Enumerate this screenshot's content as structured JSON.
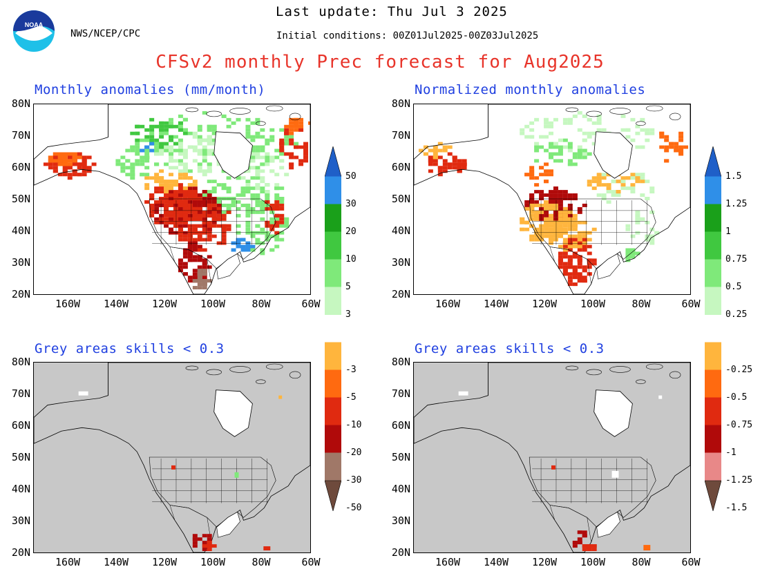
{
  "header": {
    "agency": "NWS/NCEP/CPC",
    "last_update": "Last update: Thu Jul 3 2025",
    "initial_conditions": "Initial conditions: 00Z01Jul2025-00Z03Jul2025",
    "title": "CFSv2 monthly Prec forecast for Aug2025",
    "logo_text": "NOAA"
  },
  "panels": {
    "tl_title": "Monthly anomalies (mm/month)",
    "tr_title": "Normalized monthly anomalies",
    "bl_title": "Grey areas skills < 0.3",
    "br_title": "Grey areas skills < 0.3"
  },
  "axes": {
    "lat_labels": [
      "80N",
      "70N",
      "60N",
      "50N",
      "40N",
      "30N",
      "20N"
    ],
    "lon_labels": [
      "160W",
      "140W",
      "120W",
      "100W",
      "80W",
      "60W"
    ]
  },
  "colorbar_left": {
    "labels": [
      "50",
      "30",
      "20",
      "10",
      "5",
      "3",
      "-3",
      "-5",
      "-10",
      "-20",
      "-30",
      "-50"
    ]
  },
  "colorbar_right": {
    "labels": [
      "1.5",
      "1.25",
      "1",
      "0.75",
      "0.5",
      "0.25",
      "-0.25",
      "-0.5",
      "-0.75",
      "-1",
      "-1.25",
      "-1.5"
    ]
  },
  "colors": {
    "title_red": "#e8342a",
    "panel_title_blue": "#1f3fe0",
    "grey_mask": "#c8c8c8",
    "wet_scale": [
      "#c6f7c0",
      "#7fe97a",
      "#40c840",
      "#1aa01a",
      "#2f8fe8",
      "#1f5fc8"
    ],
    "dry_scale": [
      "#ffb53d",
      "#ff6a10",
      "#e02a10",
      "#b00a0a",
      "#a07868",
      "#6e4a3c"
    ],
    "dry_scale_norm": [
      "#ffb53d",
      "#ff6a10",
      "#e02a10",
      "#b00a0a",
      "#e88888",
      "#6e4a3c"
    ]
  }
}
